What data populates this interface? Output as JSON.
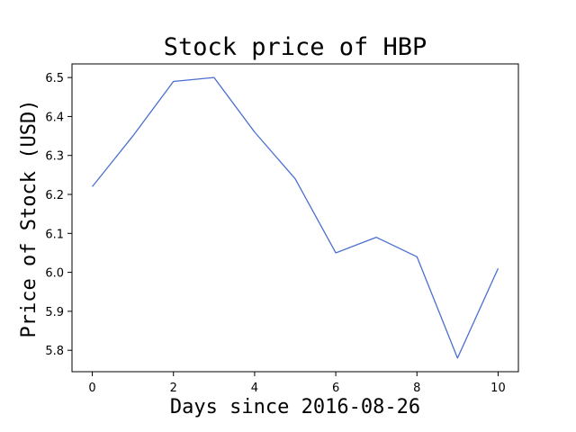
{
  "chart_data": {
    "type": "line",
    "title": "Stock price of HBP",
    "xlabel": "Days since 2016-08-26",
    "ylabel": "Price of Stock (USD)",
    "xlim": [
      -0.5,
      10.5
    ],
    "ylim": [
      5.745,
      6.535
    ],
    "xticks": [
      0,
      2,
      4,
      6,
      8,
      10
    ],
    "xtick_labels": [
      "0",
      "2",
      "4",
      "6",
      "8",
      "10"
    ],
    "yticks": [
      5.8,
      5.9,
      6.0,
      6.1,
      6.2,
      6.3,
      6.4,
      6.5
    ],
    "ytick_labels": [
      "5.8",
      "5.9",
      "6.0",
      "6.1",
      "6.2",
      "6.3",
      "6.4",
      "6.5"
    ],
    "grid": false,
    "legend": "none",
    "series": [
      {
        "color": "#4a6fcf",
        "x": [
          0,
          1,
          2,
          3,
          4,
          5,
          6,
          7,
          8,
          9,
          10
        ],
        "y": [
          6.22,
          6.35,
          6.49,
          6.5,
          6.36,
          6.24,
          6.05,
          6.09,
          6.04,
          5.78,
          6.01
        ]
      }
    ]
  }
}
